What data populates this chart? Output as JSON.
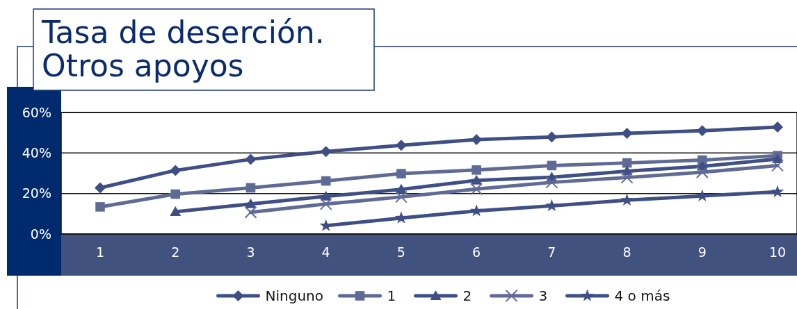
{
  "chart_data": {
    "type": "line",
    "title": "Tasa de deserción. Otros apoyos",
    "categories": [
      "1",
      "2",
      "3",
      "4",
      "5",
      "6",
      "7",
      "8",
      "9",
      "10"
    ],
    "series": [
      {
        "name": "Ninguno",
        "color": "#3f4f85",
        "marker": "diamond",
        "values": [
          22.8,
          31.4,
          36.9,
          40.7,
          43.8,
          46.6,
          47.9,
          49.7,
          51,
          52.8
        ]
      },
      {
        "name": "1",
        "color": "#5f6b95",
        "marker": "square",
        "values": [
          13.4,
          19.7,
          22.8,
          26.2,
          29.8,
          31.6,
          33.8,
          35.1,
          36.5,
          38.7
        ]
      },
      {
        "name": "2",
        "color": "#3f4f85",
        "marker": "triangle",
        "values": [
          null,
          11,
          14.8,
          18.6,
          22,
          26.5,
          28,
          31,
          33.4,
          37
        ]
      },
      {
        "name": "3",
        "color": "#5f6b95",
        "marker": "cross",
        "values": [
          null,
          null,
          10.7,
          14.8,
          18.3,
          22.2,
          25.5,
          27.9,
          30.5,
          33.8
        ]
      },
      {
        "name": "4 o más",
        "color": "#3f4f85",
        "marker": "star",
        "values": [
          null,
          null,
          null,
          4.1,
          7.9,
          11.4,
          13.9,
          16.7,
          18.8,
          20.8
        ]
      }
    ],
    "ylim": [
      0,
      60
    ],
    "yticks": [
      {
        "value": 0,
        "label": "0%"
      },
      {
        "value": 20,
        "label": "20%"
      },
      {
        "value": 40,
        "label": "40%"
      },
      {
        "value": 60,
        "label": "60%"
      }
    ],
    "grid": "y",
    "legend": "bottom",
    "line_style": "solid"
  }
}
